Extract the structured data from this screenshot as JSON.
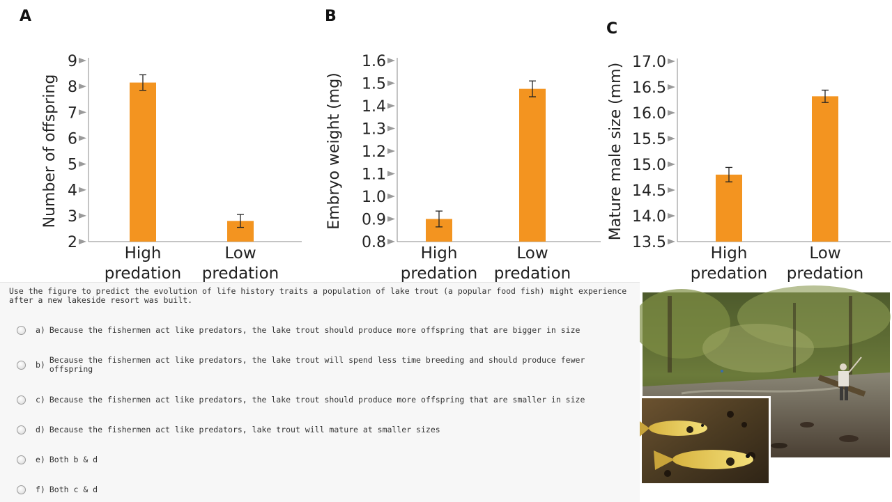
{
  "chart_data": [
    {
      "panel": "A",
      "type": "bar",
      "title": "",
      "xlabel": "",
      "ylabel": "Number of offspring",
      "categories": [
        "High predation",
        "Low predation"
      ],
      "category_lines": [
        [
          "High",
          "predation"
        ],
        [
          "Low",
          "predation"
        ]
      ],
      "values": [
        8.15,
        2.8
      ],
      "errors": [
        0.3,
        0.25
      ],
      "ylim": [
        2,
        9
      ],
      "yticks": [
        2,
        3,
        4,
        5,
        6,
        7,
        8,
        9
      ],
      "ytick_labels": [
        "2",
        "3",
        "4",
        "5",
        "6",
        "7",
        "8",
        "9"
      ],
      "color": "#f39420"
    },
    {
      "panel": "B",
      "type": "bar",
      "title": "",
      "xlabel": "",
      "ylabel": "Embryo weight (mg)",
      "categories": [
        "High predation",
        "Low predation"
      ],
      "category_lines": [
        [
          "High",
          "predation"
        ],
        [
          "Low",
          "predation"
        ]
      ],
      "values": [
        0.9,
        1.475
      ],
      "errors": [
        0.035,
        0.035
      ],
      "ylim": [
        0.8,
        1.6
      ],
      "yticks": [
        0.8,
        0.9,
        1.0,
        1.1,
        1.2,
        1.3,
        1.4,
        1.5,
        1.6
      ],
      "ytick_labels": [
        "0.8",
        "0.9",
        "1.0",
        "1.1",
        "1.2",
        "1.3",
        "1.4",
        "1.5",
        "1.6"
      ],
      "color": "#f39420"
    },
    {
      "panel": "C",
      "type": "bar",
      "title": "",
      "xlabel": "",
      "ylabel": "Mature male size (mm)",
      "categories": [
        "High predation",
        "Low predation"
      ],
      "category_lines": [
        [
          "High",
          "predation"
        ],
        [
          "Low",
          "predation"
        ]
      ],
      "values": [
        14.8,
        16.32
      ],
      "errors": [
        0.14,
        0.12
      ],
      "ylim": [
        13.5,
        17.0
      ],
      "yticks": [
        13.5,
        14.0,
        14.5,
        15.0,
        15.5,
        16.0,
        16.5,
        17.0
      ],
      "ytick_labels": [
        "13.5",
        "14.0",
        "14.5",
        "15.0",
        "15.5",
        "16.0",
        "16.5",
        "17.0"
      ],
      "color": "#f39420"
    }
  ],
  "quiz": {
    "question": "Use the figure to predict the evolution of life history traits a population of lake trout (a popular food fish) might experience after a new lakeside resort was built.",
    "options": [
      {
        "letter": "a)",
        "text": "Because the fishermen act like predators, the lake trout should produce more offspring that are bigger in size"
      },
      {
        "letter": "b)",
        "text": "Because the fishermen act like predators, the lake trout will spend less time breeding and should produce fewer offspring"
      },
      {
        "letter": "c)",
        "text": "Because the fishermen act like predators, the lake trout should produce more offspring that are smaller in size"
      },
      {
        "letter": "d)",
        "text": "Because the fishermen act like predators, lake trout will mature at smaller sizes"
      },
      {
        "letter": "e)",
        "text": "Both b & d"
      },
      {
        "letter": "f)",
        "text": "Both c & d"
      }
    ]
  },
  "colors": {
    "bar": "#f39420",
    "tick_arrow": "#9a9a9a",
    "axis": "#888888",
    "quiz_bg": "#f7f7f7"
  }
}
